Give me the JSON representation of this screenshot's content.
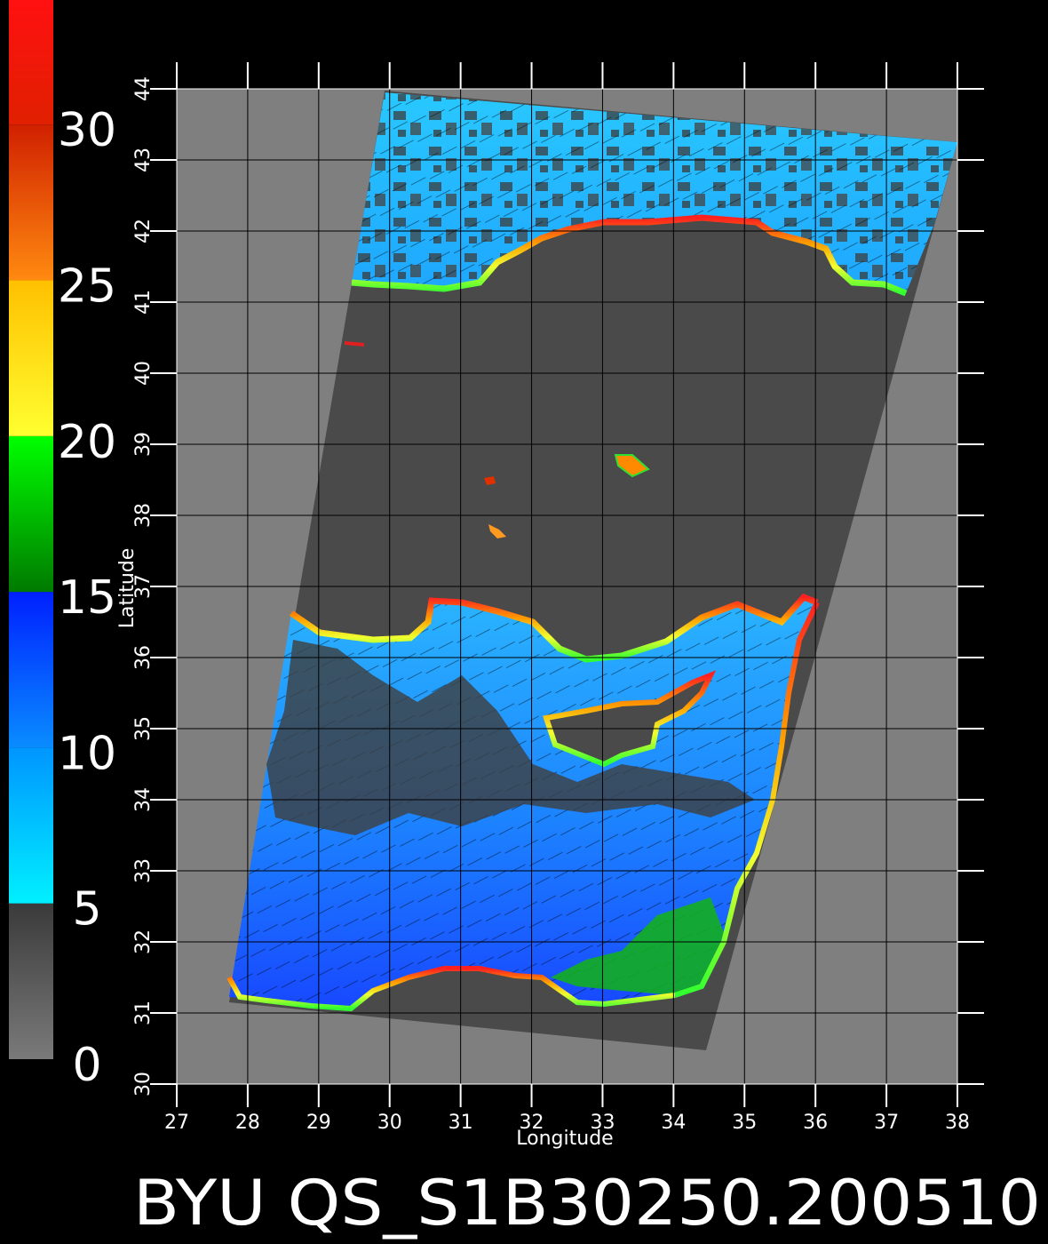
{
  "map": {
    "footer_title": "BYU QS_S1B30250.200510",
    "xlabel": "Longitude",
    "ylabel": "Latitude",
    "x_ticks": [
      "27",
      "28",
      "29",
      "30",
      "31",
      "32",
      "33",
      "34",
      "35",
      "36",
      "37",
      "38"
    ],
    "y_ticks": [
      "30",
      "31",
      "32",
      "33",
      "34",
      "35",
      "36",
      "37",
      "38",
      "39",
      "40",
      "41",
      "42",
      "43",
      "44"
    ],
    "lon_range": [
      27,
      38
    ],
    "lat_range": [
      30,
      44
    ],
    "grid": true,
    "colors": {
      "background": "#000000",
      "frame": "#7f7f7f",
      "swath_no_data": "#4a4a4a",
      "grid": "#000000",
      "axis": "#ffffff"
    }
  },
  "colorbar": {
    "labels": [
      "30",
      "25",
      "20",
      "15",
      "10",
      "5",
      "0"
    ],
    "label_values": [
      30,
      25,
      20,
      15,
      10,
      5,
      0
    ],
    "range": [
      0,
      34
    ],
    "segments": [
      {
        "from": 0,
        "to": 5,
        "colors": [
          "#7a7a7a",
          "#3a3a3a"
        ]
      },
      {
        "from": 5,
        "to": 10,
        "colors": [
          "#00f0ff",
          "#0095ff"
        ]
      },
      {
        "from": 10,
        "to": 15,
        "colors": [
          "#0a8cff",
          "#0020ff"
        ]
      },
      {
        "from": 15,
        "to": 20,
        "colors": [
          "#007a00",
          "#00ff00"
        ]
      },
      {
        "from": 20,
        "to": 25,
        "colors": [
          "#ffff30",
          "#ffc000"
        ]
      },
      {
        "from": 25,
        "to": 30,
        "colors": [
          "#ff8a10",
          "#d02000"
        ]
      },
      {
        "from": 30,
        "to": 34,
        "colors": [
          "#e02000",
          "#ff1010"
        ]
      }
    ]
  },
  "regions": [
    {
      "name": "black-sea-wind-field",
      "colors": [
        "#1fc0ff",
        "#34d6ff"
      ]
    },
    {
      "name": "mediterranean-wind-field",
      "colors": [
        "#2aa8ff",
        "#1a5cff"
      ]
    }
  ]
}
